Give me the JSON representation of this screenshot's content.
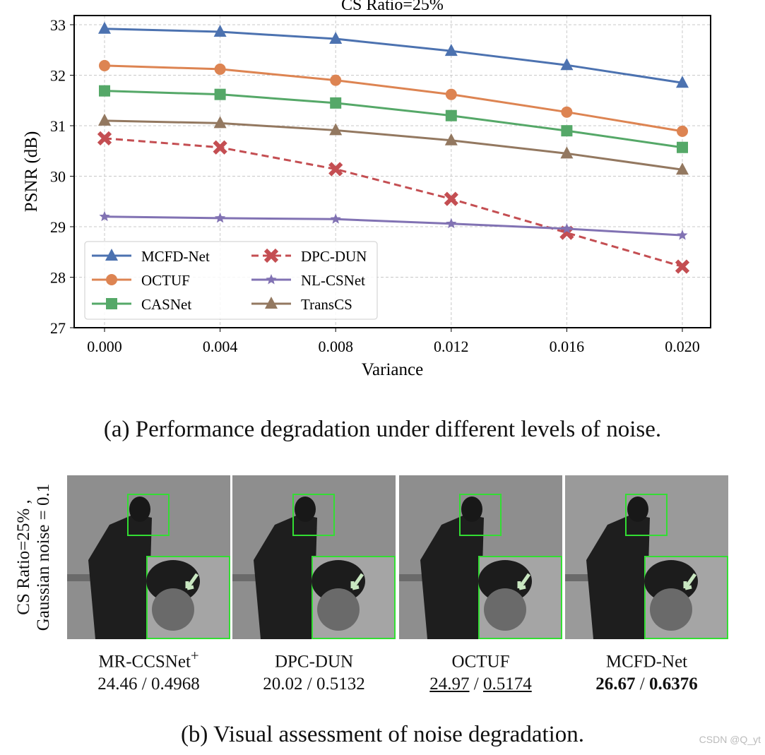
{
  "chart_data": {
    "type": "line",
    "title": "CS Ratio=25%",
    "xlabel": "Variance",
    "ylabel": "PSNR (dB)",
    "x": [
      0.0,
      0.004,
      0.008,
      0.012,
      0.016,
      0.02
    ],
    "x_tick_labels": [
      "0.000",
      "0.004",
      "0.008",
      "0.012",
      "0.016",
      "0.020"
    ],
    "y_ticks": [
      27,
      28,
      29,
      30,
      31,
      32,
      33
    ],
    "ylim": [
      27,
      33
    ],
    "grid": true,
    "legend_position": "lower-left",
    "series": [
      {
        "name": "MCFD-Net",
        "color": "#4c72b0",
        "marker": "triangle",
        "dashed": false,
        "values": [
          32.92,
          32.86,
          32.72,
          32.48,
          32.2,
          31.85
        ]
      },
      {
        "name": "OCTUF",
        "color": "#dd8452",
        "marker": "circle",
        "dashed": false,
        "values": [
          32.19,
          32.12,
          31.9,
          31.62,
          31.27,
          30.89
        ]
      },
      {
        "name": "CASNet",
        "color": "#55a868",
        "marker": "square",
        "dashed": false,
        "values": [
          31.69,
          31.62,
          31.45,
          31.2,
          30.9,
          30.57
        ]
      },
      {
        "name": "DPC-DUN",
        "color": "#c44e52",
        "marker": "x",
        "dashed": true,
        "values": [
          30.75,
          30.57,
          30.14,
          29.55,
          28.88,
          28.21
        ]
      },
      {
        "name": "NL-CSNet",
        "color": "#8172b3",
        "marker": "star",
        "dashed": false,
        "values": [
          29.2,
          29.17,
          29.15,
          29.06,
          28.96,
          28.83
        ]
      },
      {
        "name": "TransCS",
        "color": "#937860",
        "marker": "triangle",
        "dashed": false,
        "values": [
          31.1,
          31.05,
          30.91,
          30.71,
          30.45,
          30.13
        ]
      }
    ]
  },
  "caption_a": "(a) Performance degradation under different levels of noise.",
  "caption_b": "(b) Visual assessment of noise degradation.",
  "row_label": {
    "line1": "CS Ratio=25% ,",
    "line2": "Gaussian noise = 0.1"
  },
  "panels": [
    {
      "method": "MR-CCSNet",
      "superscript": "+",
      "psnr": "24.46",
      "ssim": "0.4968",
      "style": "normal"
    },
    {
      "method": "DPC-DUN",
      "superscript": "",
      "psnr": "20.02",
      "ssim": "0.5132",
      "style": "normal"
    },
    {
      "method": "OCTUF",
      "superscript": "",
      "psnr": "24.97",
      "ssim": "0.5174",
      "style": "underline"
    },
    {
      "method": "MCFD-Net",
      "superscript": "",
      "psnr": "26.67",
      "ssim": "0.6376",
      "style": "bold"
    }
  ],
  "highlight_color": "#33dd33",
  "watermark": "CSDN @Q_yt"
}
